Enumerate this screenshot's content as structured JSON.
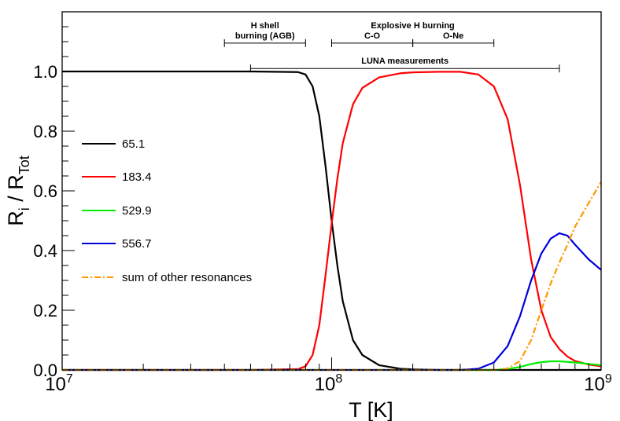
{
  "chart_data": {
    "type": "line",
    "xscale": "log",
    "xlim": [
      10000000.0,
      1000000000.0
    ],
    "ylim": [
      0,
      1.2
    ],
    "xlabel": "T [K]",
    "ylabel": {
      "main": "R",
      "sub_i": "i",
      "sep": " / R",
      "sub_tot": "Tot"
    },
    "xticks": [
      {
        "value": 10000000.0,
        "base": "10",
        "exp": "7"
      },
      {
        "value": 100000000.0,
        "base": "10",
        "exp": "8"
      },
      {
        "value": 1000000000.0,
        "base": "10",
        "exp": "9"
      }
    ],
    "yticks": [
      {
        "value": 0.0,
        "label": "0.0"
      },
      {
        "value": 0.2,
        "label": "0.2"
      },
      {
        "value": 0.4,
        "label": "0.4"
      },
      {
        "value": 0.6,
        "label": "0.6"
      },
      {
        "value": 0.8,
        "label": "0.8"
      },
      {
        "value": 1.0,
        "label": "1.0"
      }
    ],
    "series": [
      {
        "name": "65.1",
        "color": "#000000",
        "dash": "",
        "x": [
          10000000.0,
          20000000.0,
          50000000.0,
          75000000.0,
          80000000.0,
          85000000.0,
          90000000.0,
          95000000.0,
          100000000.0,
          105000000.0,
          110000000.0,
          120000000.0,
          130000000.0,
          150000000.0,
          180000000.0,
          200000000.0,
          250000000.0,
          300000000.0,
          1000000000.0
        ],
        "y": [
          1.0,
          1.0,
          1.0,
          0.998,
          0.99,
          0.95,
          0.85,
          0.68,
          0.5,
          0.35,
          0.23,
          0.1,
          0.05,
          0.016,
          0.004,
          0.002,
          0.0,
          0.0,
          0.0
        ]
      },
      {
        "name": "183.4",
        "color": "#ff0000",
        "dash": "",
        "x": [
          10000000.0,
          50000000.0,
          75000000.0,
          80000000.0,
          85000000.0,
          90000000.0,
          95000000.0,
          100000000.0,
          105000000.0,
          110000000.0,
          120000000.0,
          130000000.0,
          150000000.0,
          180000000.0,
          200000000.0,
          250000000.0,
          300000000.0,
          350000000.0,
          400000000.0,
          450000000.0,
          500000000.0,
          550000000.0,
          600000000.0,
          650000000.0,
          700000000.0,
          750000000.0,
          800000000.0,
          900000000.0,
          1000000000.0
        ],
        "y": [
          0.0,
          0.0,
          0.003,
          0.012,
          0.05,
          0.15,
          0.32,
          0.49,
          0.64,
          0.76,
          0.89,
          0.945,
          0.98,
          0.994,
          0.997,
          0.999,
          0.999,
          0.99,
          0.95,
          0.84,
          0.62,
          0.37,
          0.2,
          0.11,
          0.07,
          0.045,
          0.03,
          0.018,
          0.012
        ]
      },
      {
        "name": "529.9",
        "color": "#00ee00",
        "dash": "",
        "x": [
          10000000.0,
          400000000.0,
          450000000.0,
          500000000.0,
          550000000.0,
          600000000.0,
          650000000.0,
          700000000.0,
          750000000.0,
          800000000.0,
          900000000.0,
          1000000000.0
        ],
        "y": [
          0.0,
          0.0,
          0.003,
          0.01,
          0.02,
          0.026,
          0.029,
          0.029,
          0.027,
          0.025,
          0.02,
          0.016
        ]
      },
      {
        "name": "556.7",
        "color": "#0000dd",
        "dash": "",
        "x": [
          10000000.0,
          300000000.0,
          350000000.0,
          400000000.0,
          450000000.0,
          500000000.0,
          550000000.0,
          600000000.0,
          650000000.0,
          700000000.0,
          750000000.0,
          800000000.0,
          900000000.0,
          1000000000.0
        ],
        "y": [
          0.0,
          0.0,
          0.004,
          0.025,
          0.08,
          0.18,
          0.3,
          0.39,
          0.44,
          0.458,
          0.45,
          0.42,
          0.37,
          0.335
        ]
      },
      {
        "name": "sum of other resonances",
        "color": "#ff9900",
        "dash": "8,3,2,3",
        "x": [
          10000000.0,
          400000000.0,
          450000000.0,
          500000000.0,
          550000000.0,
          600000000.0,
          650000000.0,
          700000000.0,
          750000000.0,
          800000000.0,
          900000000.0,
          1000000000.0
        ],
        "y": [
          0.0,
          0.0,
          0.005,
          0.03,
          0.1,
          0.2,
          0.29,
          0.36,
          0.42,
          0.48,
          0.56,
          0.63
        ]
      }
    ],
    "ranges": [
      {
        "label_lines": [
          "H shell",
          "burning (AGB)"
        ],
        "x0": 40000000.0,
        "x1": 80000000.0,
        "y": 1.095
      },
      {
        "label_lines": [
          "C-O"
        ],
        "x0": 100000000.0,
        "x1": 200000000.0,
        "y": 1.095
      },
      {
        "label_lines": [
          "O-Ne"
        ],
        "x0": 200000000.0,
        "x1": 400000000.0,
        "y": 1.095
      },
      {
        "label_lines": [
          "LUNA measurements"
        ],
        "x0": 50000000.0,
        "x1": 700000000.0,
        "y": 1.01
      }
    ],
    "group_label": "Explosive H burning",
    "legend": "left"
  }
}
